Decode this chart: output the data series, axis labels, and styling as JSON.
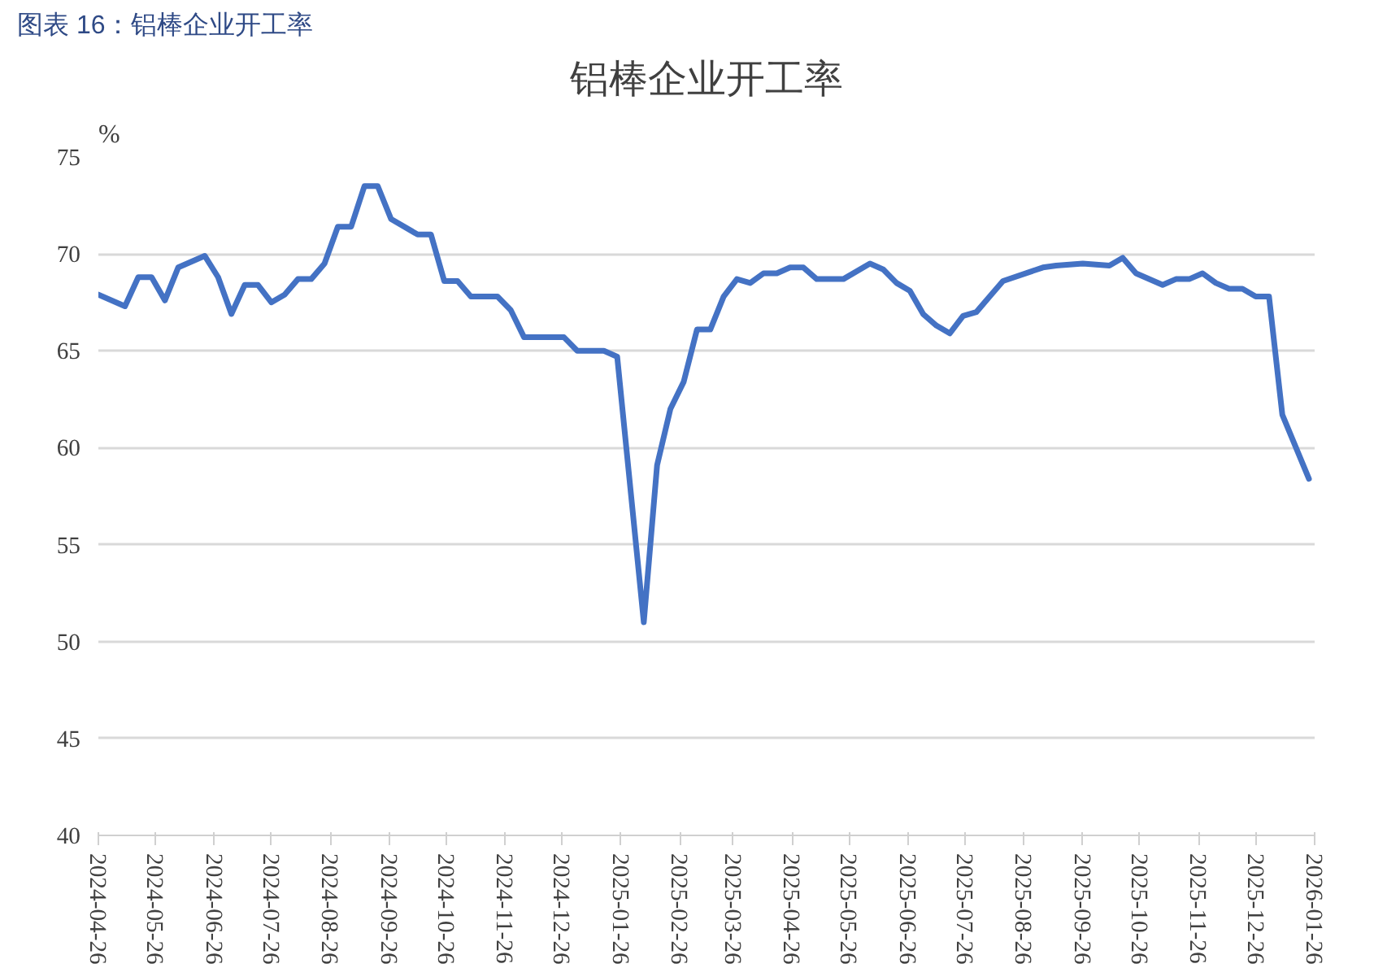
{
  "chart_data": {
    "type": "line",
    "title": "铝棒企业开工率",
    "ylabel": "%",
    "annotations": [
      "图表 16：铝棒企业开工率"
    ],
    "x": [
      "2024-04-26",
      "2024-05-10",
      "2024-05-17",
      "2024-05-24",
      "2024-05-31",
      "2024-06-07",
      "2024-06-21",
      "2024-06-28",
      "2024-07-05",
      "2024-07-12",
      "2024-07-19",
      "2024-07-26",
      "2024-08-02",
      "2024-08-09",
      "2024-08-16",
      "2024-08-23",
      "2024-08-30",
      "2024-09-06",
      "2024-09-13",
      "2024-09-20",
      "2024-09-27",
      "2024-10-11",
      "2024-10-18",
      "2024-10-25",
      "2024-11-01",
      "2024-11-08",
      "2024-11-22",
      "2024-11-29",
      "2024-12-06",
      "2024-12-27",
      "2025-01-03",
      "2025-01-17",
      "2025-01-24",
      "2025-02-07",
      "2025-02-14",
      "2025-02-21",
      "2025-02-28",
      "2025-03-07",
      "2025-03-14",
      "2025-03-21",
      "2025-03-28",
      "2025-04-04",
      "2025-04-11",
      "2025-04-18",
      "2025-04-25",
      "2025-05-02",
      "2025-05-09",
      "2025-05-23",
      "2025-06-06",
      "2025-06-13",
      "2025-06-20",
      "2025-06-27",
      "2025-07-04",
      "2025-07-11",
      "2025-07-18",
      "2025-07-25",
      "2025-08-01",
      "2025-08-08",
      "2025-08-15",
      "2025-09-05",
      "2025-09-12",
      "2025-09-26",
      "2025-10-10",
      "2025-10-17",
      "2025-10-24",
      "2025-11-07",
      "2025-11-14",
      "2025-11-21",
      "2025-11-28",
      "2025-12-05",
      "2025-12-12",
      "2025-12-19",
      "2025-12-26",
      "2026-01-02",
      "2026-01-09",
      "2026-01-23"
    ],
    "series": [
      {
        "color": "#4472c4",
        "values": [
          67.9,
          67.3,
          68.8,
          68.8,
          67.6,
          69.3,
          69.9,
          68.8,
          66.9,
          68.4,
          68.4,
          67.5,
          67.9,
          68.7,
          68.7,
          69.5,
          71.4,
          71.4,
          73.5,
          73.5,
          71.8,
          71.0,
          71.0,
          68.6,
          68.6,
          67.8,
          67.8,
          67.1,
          65.7,
          65.7,
          65.0,
          65.0,
          64.7,
          51.0,
          59.1,
          62.0,
          63.4,
          66.1,
          66.1,
          67.8,
          68.7,
          68.5,
          69.0,
          69.0,
          69.3,
          69.3,
          68.7,
          68.7,
          69.5,
          69.2,
          68.5,
          68.1,
          66.9,
          66.3,
          65.9,
          66.8,
          67.0,
          67.8,
          68.6,
          69.3,
          69.4,
          69.5,
          69.4,
          69.8,
          69.0,
          68.4,
          68.7,
          68.7,
          69.0,
          68.5,
          68.2,
          68.2,
          67.8,
          67.8,
          61.7,
          58.4
        ]
      }
    ],
    "xlim": [
      "2024-04-26",
      "2026-01-26"
    ],
    "xticks": [
      "2024-04-26",
      "2024-05-26",
      "2024-06-26",
      "2024-07-26",
      "2024-08-26",
      "2024-09-26",
      "2024-10-26",
      "2024-11-26",
      "2024-12-26",
      "2025-01-26",
      "2025-02-26",
      "2025-03-26",
      "2025-04-26",
      "2025-05-26",
      "2025-06-26",
      "2025-07-26",
      "2025-08-26",
      "2025-09-26",
      "2025-10-26",
      "2025-11-26",
      "2025-12-26",
      "2026-01-26"
    ],
    "ylim": [
      40,
      75
    ],
    "yticks": [
      40,
      45,
      50,
      55,
      60,
      65,
      70,
      75
    ],
    "grid": "y",
    "line_style": "solid"
  }
}
